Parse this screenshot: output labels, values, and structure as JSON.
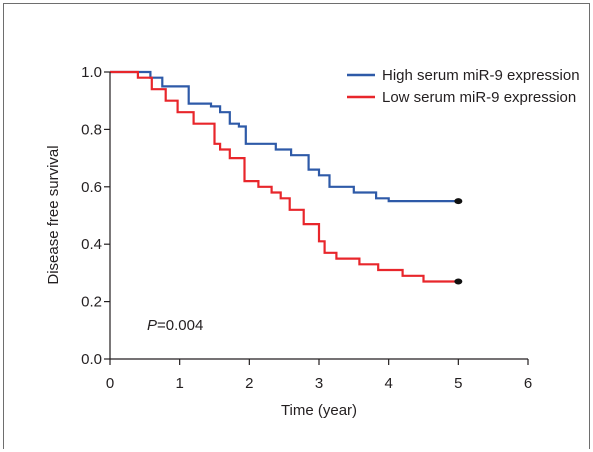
{
  "chart_data": {
    "type": "line",
    "step": true,
    "xlabel": "Time (year)",
    "ylabel": "Disease free survival",
    "xlim": [
      0,
      6
    ],
    "ylim": [
      0,
      1.0
    ],
    "x_ticks": [
      "0",
      "1",
      "2",
      "3",
      "4",
      "5",
      "6"
    ],
    "y_ticks": [
      "0.0",
      "0.2",
      "0.4",
      "0.6",
      "0.8",
      "1.0"
    ],
    "annotation": {
      "prefix": "P",
      "text": "=0.004"
    },
    "legend_position": "top-right",
    "series": [
      {
        "name": "High serum miR-9 expression",
        "color": "#2e5aa8",
        "points": [
          [
            0,
            1.0
          ],
          [
            0.58,
            1.0
          ],
          [
            0.58,
            0.98
          ],
          [
            0.75,
            0.98
          ],
          [
            0.75,
            0.95
          ],
          [
            1.13,
            0.95
          ],
          [
            1.13,
            0.89
          ],
          [
            1.45,
            0.89
          ],
          [
            1.45,
            0.88
          ],
          [
            1.58,
            0.88
          ],
          [
            1.58,
            0.86
          ],
          [
            1.72,
            0.86
          ],
          [
            1.72,
            0.82
          ],
          [
            1.85,
            0.82
          ],
          [
            1.85,
            0.81
          ],
          [
            1.95,
            0.81
          ],
          [
            1.95,
            0.75
          ],
          [
            2.38,
            0.75
          ],
          [
            2.38,
            0.73
          ],
          [
            2.6,
            0.73
          ],
          [
            2.6,
            0.71
          ],
          [
            2.85,
            0.71
          ],
          [
            2.85,
            0.66
          ],
          [
            3.0,
            0.66
          ],
          [
            3.0,
            0.64
          ],
          [
            3.15,
            0.64
          ],
          [
            3.15,
            0.6
          ],
          [
            3.5,
            0.6
          ],
          [
            3.5,
            0.58
          ],
          [
            3.82,
            0.58
          ],
          [
            3.82,
            0.56
          ],
          [
            4.0,
            0.56
          ],
          [
            4.0,
            0.55
          ],
          [
            5.0,
            0.55
          ]
        ],
        "end_marker": [
          5.0,
          0.55
        ]
      },
      {
        "name": "Low serum miR-9 expression",
        "color": "#e8262b",
        "points": [
          [
            0,
            1.0
          ],
          [
            0.4,
            1.0
          ],
          [
            0.4,
            0.98
          ],
          [
            0.6,
            0.98
          ],
          [
            0.6,
            0.94
          ],
          [
            0.8,
            0.94
          ],
          [
            0.8,
            0.9
          ],
          [
            0.97,
            0.9
          ],
          [
            0.97,
            0.86
          ],
          [
            1.2,
            0.86
          ],
          [
            1.2,
            0.82
          ],
          [
            1.5,
            0.82
          ],
          [
            1.5,
            0.75
          ],
          [
            1.58,
            0.75
          ],
          [
            1.58,
            0.73
          ],
          [
            1.72,
            0.73
          ],
          [
            1.72,
            0.7
          ],
          [
            1.93,
            0.7
          ],
          [
            1.93,
            0.62
          ],
          [
            2.13,
            0.62
          ],
          [
            2.13,
            0.6
          ],
          [
            2.32,
            0.6
          ],
          [
            2.32,
            0.58
          ],
          [
            2.45,
            0.58
          ],
          [
            2.45,
            0.56
          ],
          [
            2.58,
            0.56
          ],
          [
            2.58,
            0.52
          ],
          [
            2.78,
            0.52
          ],
          [
            2.78,
            0.47
          ],
          [
            3.0,
            0.47
          ],
          [
            3.0,
            0.41
          ],
          [
            3.08,
            0.41
          ],
          [
            3.08,
            0.37
          ],
          [
            3.25,
            0.37
          ],
          [
            3.25,
            0.35
          ],
          [
            3.58,
            0.35
          ],
          [
            3.58,
            0.33
          ],
          [
            3.85,
            0.33
          ],
          [
            3.85,
            0.31
          ],
          [
            4.2,
            0.31
          ],
          [
            4.2,
            0.29
          ],
          [
            4.5,
            0.29
          ],
          [
            4.5,
            0.27
          ],
          [
            5.0,
            0.27
          ]
        ],
        "end_marker": [
          5.0,
          0.27
        ]
      }
    ]
  }
}
